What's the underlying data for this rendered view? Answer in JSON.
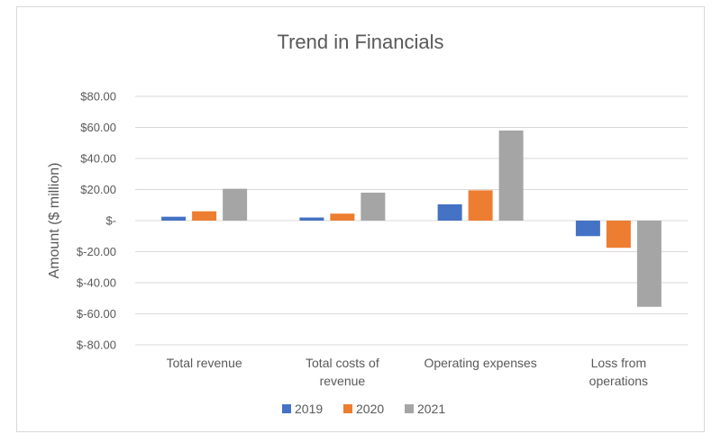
{
  "chart_data": {
    "type": "bar",
    "title": "Trend in Financials",
    "xlabel": "",
    "ylabel": "Amount ($ million)",
    "ylim": [
      -80,
      80
    ],
    "yticks": [
      80,
      60,
      40,
      20,
      0,
      -20,
      -40,
      -60,
      -80
    ],
    "ytick_labels": [
      "$80.00",
      "$60.00",
      "$40.00",
      "$20.00",
      "$-",
      "$-20.00",
      "$-40.00",
      "$-60.00",
      "$-80.00"
    ],
    "categories": [
      "Total revenue",
      "Total costs of revenue",
      "Operating expenses",
      "Loss from operations"
    ],
    "category_lines": [
      [
        "Total revenue"
      ],
      [
        "Total costs of",
        "revenue"
      ],
      [
        "Operating expenses"
      ],
      [
        "Loss from",
        "operations"
      ]
    ],
    "series": [
      {
        "name": "2019",
        "color": "#4472c4",
        "values": [
          2.5,
          2.0,
          10.5,
          -10.0
        ]
      },
      {
        "name": "2020",
        "color": "#ed7d31",
        "values": [
          6.0,
          4.5,
          19.5,
          -17.5
        ]
      },
      {
        "name": "2021",
        "color": "#a5a5a5",
        "values": [
          20.5,
          18.0,
          58.0,
          -55.5
        ]
      }
    ],
    "grid": true,
    "legend_position": "bottom"
  }
}
